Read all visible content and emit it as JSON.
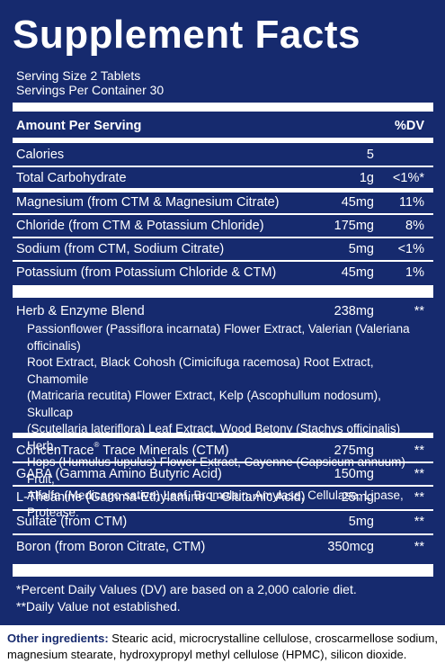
{
  "title": "Supplement Facts",
  "serving_size": "Serving Size 2 Tablets",
  "servings_per_container": "Servings Per Container 30",
  "header": {
    "amount_label": "Amount Per Serving",
    "dv_label": "%DV"
  },
  "nutrients": [
    {
      "name": "Calories",
      "amount": "5",
      "dv": ""
    },
    {
      "name": "Total Carbohydrate",
      "amount": "1g",
      "dv": "<1%*"
    },
    {
      "name": "Magnesium (from CTM & Magnesium Citrate)",
      "amount": "45mg",
      "dv": "11%"
    },
    {
      "name": "Chloride (from CTM & Potassium Chloride)",
      "amount": "175mg",
      "dv": "8%"
    },
    {
      "name": "Sodium (from CTM, Sodium Citrate)",
      "amount": "5mg",
      "dv": "<1%"
    },
    {
      "name": "Potassium (from Potassium Chloride & CTM)",
      "amount": "45mg",
      "dv": "1%"
    }
  ],
  "blend": {
    "name": "Herb & Enzyme Blend",
    "amount": "238mg",
    "dv": "**",
    "ingredients": "Passionflower (Passiflora incarnata) Flower Extract, Valerian (Valeriana officinalis)\nRoot Extract, Black Cohosh (Cimicifuga racemosa) Root Extract, Chamomile\n(Matricaria recutita) Flower Extract, Kelp (Ascophullum nodosum), Skullcap\n(Scutellaria lateriflora) Leaf Extract, Wood Betony (Stachys officinalis) Herb,\nHops (Humulus lupulus) Flower Extract, Cayenne (Capsicum annuum) Fruit,\nAlfalfa (Medicago sativa) Leaf, Bromelain, Amylase, Cellulase, Lipase, Protease."
  },
  "others": [
    {
      "name": "ConcenTrace",
      "mark": "®",
      "suffix": " Trace Minerals (CTM)",
      "amount": "275mg",
      "dv": "**"
    },
    {
      "name": "GABA (Gamma Amino Butyric Acid)",
      "amount": "150mg",
      "dv": "**"
    },
    {
      "name": "L-Theanine (Gamma-Ethylamino-L-Glutamic Acid)",
      "amount": "25mg",
      "dv": "**"
    },
    {
      "name": "Sulfate (from CTM)",
      "amount": "5mg",
      "dv": "**"
    },
    {
      "name": "Boron (from Boron Citrate, CTM)",
      "amount": "350mcg",
      "dv": "**"
    }
  ],
  "footnotes": [
    "*Percent Daily Values (DV) are based on a 2,000 calorie diet.",
    "**Daily Value not established."
  ],
  "other_ingredients": {
    "label": "Other ingredients:",
    "text": " Stearic acid, microcrystalline cellulose, croscarmellose sodium, magnesium stearate, hydroxypropyl methyl cellulose (HPMC), silicon dioxide."
  },
  "colors": {
    "panel": "#162a6e",
    "text": "#ffffff",
    "rule": "#ffffff"
  }
}
